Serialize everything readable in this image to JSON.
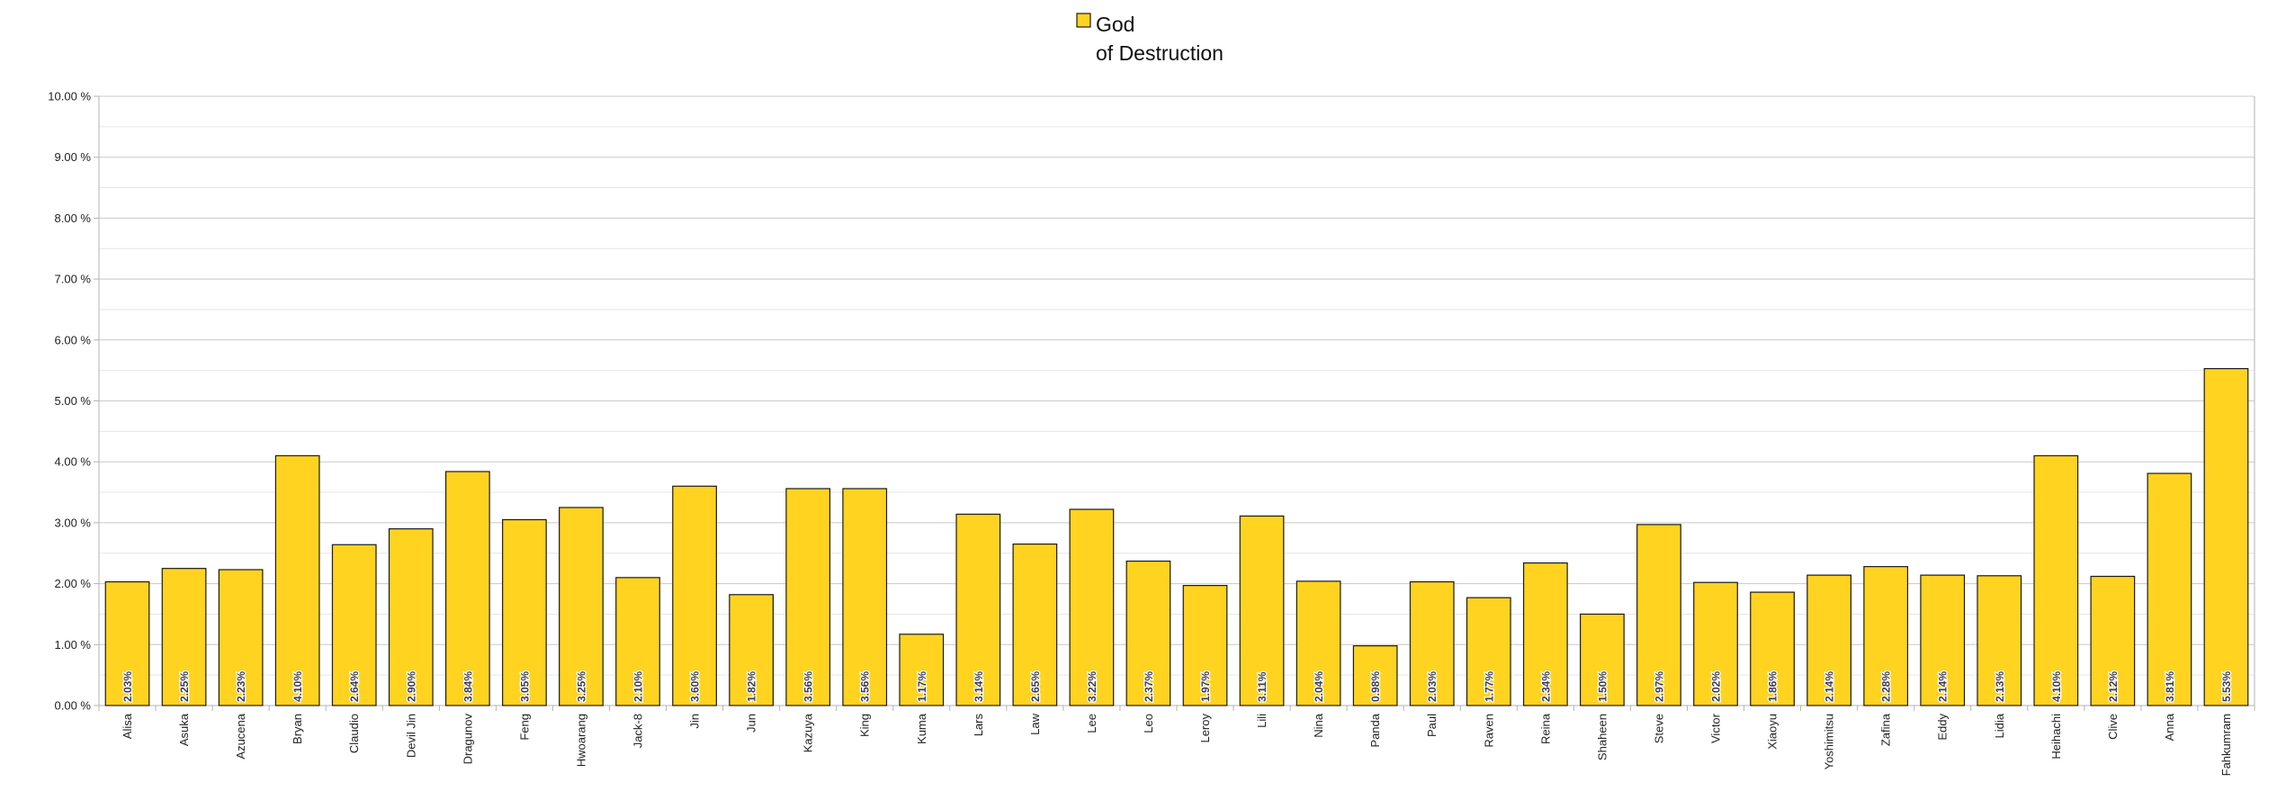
{
  "chart_data": {
    "type": "bar",
    "legend": {
      "position": "top-center",
      "entries": [
        {
          "lines": [
            "God",
            "of Destruction"
          ],
          "color": "#FFD320"
        }
      ]
    },
    "series": [
      {
        "name": "God of Destruction",
        "color": "#FFD320",
        "values": [
          2.03,
          2.25,
          2.23,
          4.1,
          2.64,
          2.9,
          3.84,
          3.05,
          3.25,
          2.1,
          3.6,
          1.82,
          3.56,
          3.56,
          1.17,
          3.14,
          2.65,
          3.22,
          2.37,
          1.97,
          3.11,
          2.04,
          0.98,
          2.03,
          1.77,
          2.34,
          1.5,
          2.97,
          2.02,
          1.86,
          2.14,
          2.28,
          2.14,
          2.13,
          4.1,
          2.12,
          3.81,
          5.53
        ]
      }
    ],
    "categories": [
      "Alisa",
      "Asuka",
      "Azucena",
      "Bryan",
      "Claudio",
      "Devil Jin",
      "Dragunov",
      "Feng",
      "Hwoarang",
      "Jack-8",
      "Jin",
      "Jun",
      "Kazuya",
      "King",
      "Kuma",
      "Lars",
      "Law",
      "Lee",
      "Leo",
      "Leroy",
      "Lili",
      "Nina",
      "Panda",
      "Paul",
      "Raven",
      "Reina",
      "Shaheen",
      "Steve",
      "Victor",
      "Xiaoyu",
      "Yoshimitsu",
      "Zafina",
      "Eddy",
      "Lidia",
      "Heihachi",
      "Clive",
      "Anna",
      "Fahkumram"
    ],
    "data_labels": [
      "2.03%",
      "2.25%",
      "2.23%",
      "4.10%",
      "2.64%",
      "2.90%",
      "3.84%",
      "3.05%",
      "3.25%",
      "2.10%",
      "3.60%",
      "1.82%",
      "3.56%",
      "3.56%",
      "1.17%",
      "3.14%",
      "2.65%",
      "3.22%",
      "2.37%",
      "1.97%",
      "3.11%",
      "2.04%",
      "0.98%",
      "2.03%",
      "1.77%",
      "2.34%",
      "1.50%",
      "2.97%",
      "2.02%",
      "1.86%",
      "2.14%",
      "2.28%",
      "2.14%",
      "2.13%",
      "4.10%",
      "2.12%",
      "3.81%",
      "5.53%"
    ],
    "y_ticks": [
      "0.00 %",
      "1.00 %",
      "2.00 %",
      "3.00 %",
      "4.00 %",
      "5.00 %",
      "6.00 %",
      "7.00 %",
      "8.00 %",
      "9.00 %",
      "10.00 %"
    ],
    "ylim": [
      0,
      10
    ],
    "grid": true,
    "minor_grid": true,
    "axis_color": "#b3b3b3",
    "grid_color": "#c8c8c8",
    "minor_grid_color": "#e6e6e6",
    "bar_border_color": "#1a1a1a"
  }
}
